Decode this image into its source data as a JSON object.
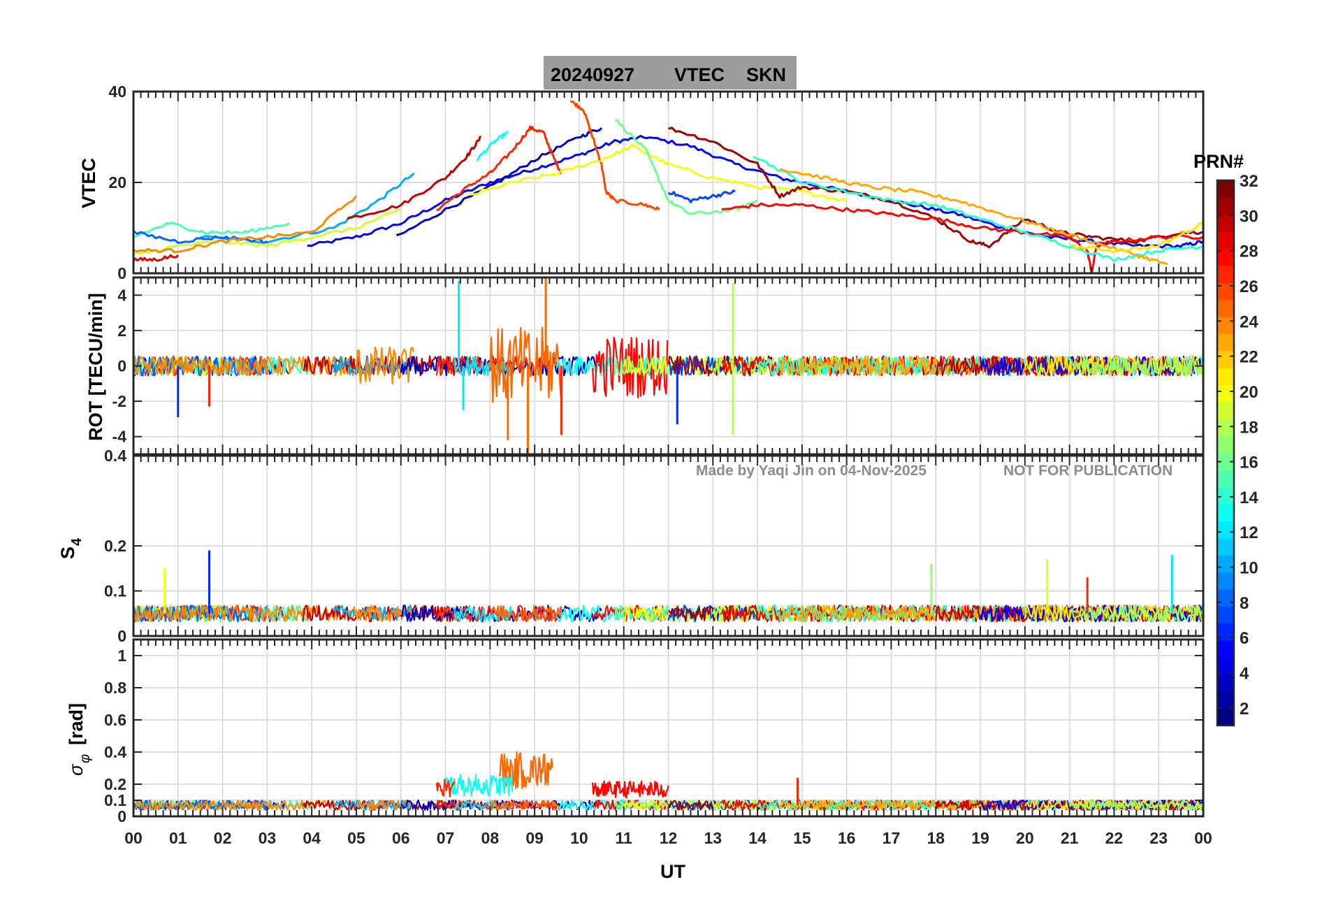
{
  "figure": {
    "title_date": "20240927",
    "title_product": "VTEC",
    "title_station": "SKN",
    "watermark_author": "Made by Yaqi Jin on 04-Nov-2025",
    "watermark_notice": "NOT FOR PUBLICATION",
    "title_bg_color": "#9e9e9e"
  },
  "chart_data": [
    {
      "type": "line",
      "id": "vtec",
      "ylabel": "VTEC",
      "ylim": [
        0,
        40
      ],
      "yticks": [
        0,
        20,
        40
      ],
      "ytick_labels": [
        "0",
        "20",
        "40"
      ],
      "xlim": [
        0,
        24
      ],
      "series_note": "one trace per GPS PRN, colored by PRN",
      "series": [
        {
          "prn": 5,
          "x": [
            3.9,
            5.0,
            6.0,
            7.0,
            8.0,
            9.0,
            10.0,
            10.8,
            11.5,
            12.5,
            13.5,
            14.5,
            15.5,
            16.5,
            17.5,
            18.5,
            19.5,
            20.5,
            21.5,
            22.5,
            23.5,
            24.0
          ],
          "y": [
            6,
            8,
            11,
            16,
            20,
            23,
            26,
            29,
            30,
            28,
            24,
            21,
            19,
            17,
            15,
            13,
            10,
            8,
            7,
            6,
            6,
            7
          ]
        },
        {
          "prn": 10,
          "x": [
            1.5,
            3.0,
            4.5,
            5.5,
            6.3
          ],
          "y": [
            8,
            7,
            10,
            16,
            22
          ]
        },
        {
          "prn": 3,
          "x": [
            5.9,
            7.0,
            8.0,
            9.0,
            10.0,
            10.5
          ],
          "y": [
            8,
            14,
            19,
            25,
            30,
            32
          ]
        },
        {
          "prn": 30,
          "x": [
            4.8,
            6.0,
            7.0,
            7.5,
            7.8
          ],
          "y": [
            12,
            15,
            21,
            26,
            30
          ]
        },
        {
          "prn": 27,
          "x": [
            6.8,
            7.5,
            8.0,
            8.5,
            8.9,
            9.2,
            9.4,
            9.6
          ],
          "y": [
            14,
            19,
            22,
            27,
            32,
            31,
            26,
            22
          ]
        },
        {
          "prn": 26,
          "x": [
            9.8,
            10.1,
            10.3,
            10.5,
            10.6,
            10.8,
            11.5,
            11.8
          ],
          "y": [
            38,
            36,
            30,
            24,
            18,
            16,
            15,
            14
          ]
        },
        {
          "prn": 13,
          "x": [
            7.7,
            8.1,
            8.4
          ],
          "y": [
            25,
            29,
            31
          ]
        },
        {
          "prn": 20,
          "x": [
            7.5,
            8.5,
            9.5,
            10.5,
            11.2,
            12.0,
            13.0,
            14.0,
            15.0,
            16.0
          ],
          "y": [
            17,
            20,
            22,
            25,
            28,
            24,
            21,
            19,
            18,
            16
          ]
        },
        {
          "prn": 31,
          "x": [
            12.0,
            13.0,
            14.0,
            14.5,
            15.0,
            16.0,
            17.0,
            18.0,
            18.8,
            19.2,
            20.0,
            20.8,
            21.5,
            22.5,
            23.5,
            24.0
          ],
          "y": [
            32,
            29,
            24,
            17,
            19,
            18,
            16,
            12,
            7,
            6,
            12,
            9,
            8,
            7,
            9,
            9
          ]
        },
        {
          "prn": 16,
          "x": [
            10.8,
            11.5,
            12.0,
            12.5,
            13.5,
            14.0
          ],
          "y": [
            34,
            27,
            16,
            13,
            14,
            16
          ]
        },
        {
          "prn": 7,
          "x": [
            12.0,
            12.5,
            13.0,
            13.5
          ],
          "y": [
            18,
            16,
            17,
            18
          ]
        },
        {
          "prn": 28,
          "x": [
            13.2,
            14.0,
            15.0,
            16.0,
            17.0,
            18.0,
            19.0,
            20.0,
            21.0,
            21.4,
            21.5,
            21.6,
            22.0,
            23.0,
            24.0
          ],
          "y": [
            14,
            15,
            15,
            14,
            13,
            12,
            10,
            9,
            8,
            5,
            0,
            6,
            7,
            8,
            8
          ]
        },
        {
          "prn": 14,
          "x": [
            13.9,
            15.0,
            16.0,
            17.0,
            18.0,
            19.0,
            20.0,
            21.0,
            22.0,
            23.0,
            24.0
          ],
          "y": [
            26,
            20,
            18,
            16,
            15,
            12,
            9,
            6,
            3,
            5,
            6
          ]
        },
        {
          "prn": 23,
          "x": [
            14.5,
            15.5,
            16.5,
            17.5,
            18.5,
            19.5,
            20.5,
            21.5,
            22.5,
            23.2
          ],
          "y": [
            23,
            21,
            19,
            18,
            16,
            13,
            10,
            7,
            4,
            2
          ]
        },
        {
          "prn": 19,
          "x": [
            0.0,
            1.0,
            2.0,
            3.0,
            4.0,
            5.0,
            6.0
          ],
          "y": [
            4,
            6,
            7,
            6,
            8,
            10,
            14
          ]
        },
        {
          "prn": 15,
          "x": [
            0.0,
            0.8,
            1.6,
            2.5,
            3.5
          ],
          "y": [
            8,
            11,
            9,
            9,
            11
          ]
        },
        {
          "prn": 29,
          "x": [
            0.0,
            0.5,
            1.0
          ],
          "y": [
            3,
            3,
            4
          ]
        },
        {
          "prn": 8,
          "x": [
            0.0,
            1.0,
            2.0,
            3.0
          ],
          "y": [
            9,
            7,
            8,
            7
          ]
        },
        {
          "prn": 24,
          "x": [
            0.0,
            1.0,
            2.0,
            3.0,
            4.0,
            5.0
          ],
          "y": [
            5,
            5,
            7,
            8,
            9,
            17
          ]
        },
        {
          "prn": 21,
          "x": [
            21.0,
            22.0,
            23.0,
            24.0
          ],
          "y": [
            6,
            5,
            6,
            11
          ]
        }
      ]
    },
    {
      "type": "line",
      "id": "rot",
      "ylabel": "ROT [TECU/min]",
      "ylim": [
        -5,
        5
      ],
      "yticks": [
        -4,
        -2,
        0,
        2,
        4
      ],
      "ytick_labels": [
        "-4",
        "-2",
        "0",
        "2",
        "4"
      ],
      "xlim": [
        0,
        24
      ],
      "spikes": [
        {
          "prn": 12,
          "x": 7.3,
          "y": 4.8
        },
        {
          "prn": 12,
          "x": 7.4,
          "y": -2.5
        },
        {
          "prn": 25,
          "x": 8.4,
          "y": -4.2
        },
        {
          "prn": 25,
          "x": 8.85,
          "y": -5.0
        },
        {
          "prn": 25,
          "x": 9.25,
          "y": 5.0
        },
        {
          "prn": 27,
          "x": 9.6,
          "y": -3.9
        },
        {
          "prn": 18,
          "x": 13.45,
          "y": 4.7
        },
        {
          "prn": 18,
          "x": 13.45,
          "y": -3.9
        },
        {
          "prn": 6,
          "x": 12.2,
          "y": -3.3
        },
        {
          "prn": 6,
          "x": 1.0,
          "y": -2.9
        },
        {
          "prn": 27,
          "x": 1.7,
          "y": -2.3
        }
      ],
      "typical_range": [
        -1,
        1
      ]
    },
    {
      "type": "line",
      "id": "s4",
      "ylabel": "S4",
      "ylim": [
        0,
        0.4
      ],
      "yticks": [
        0,
        0.1,
        0.2,
        0.4
      ],
      "ytick_labels": [
        "0",
        "0.1",
        "0.2",
        "0.4"
      ],
      "xlim": [
        0,
        24
      ],
      "spikes": [
        {
          "prn": 6,
          "x": 1.7,
          "y": 0.19
        },
        {
          "prn": 20,
          "x": 0.7,
          "y": 0.15
        },
        {
          "prn": 12,
          "x": 23.3,
          "y": 0.18
        },
        {
          "prn": 17,
          "x": 17.9,
          "y": 0.16
        },
        {
          "prn": 19,
          "x": 20.5,
          "y": 0.17
        },
        {
          "prn": 27,
          "x": 21.4,
          "y": 0.13
        }
      ],
      "baseline": 0.05
    },
    {
      "type": "line",
      "id": "sigphi",
      "ylabel": "σφ [rad]",
      "ylim": [
        0,
        1.1
      ],
      "yticks": [
        0,
        0.1,
        0.2,
        0.4,
        0.6,
        0.8,
        1.0
      ],
      "ytick_labels": [
        "0",
        "0.1",
        "0.2",
        "0.4",
        "0.6",
        "0.8",
        "1"
      ],
      "xlim": [
        0,
        24
      ],
      "bursts": [
        {
          "prn": 25,
          "x": [
            8.2,
            9.4
          ],
          "y_max": 0.4
        },
        {
          "prn": 13,
          "x": [
            7.0,
            8.5
          ],
          "y_max": 0.26
        },
        {
          "prn": 27,
          "x": [
            6.8,
            7.2
          ],
          "y_max": 0.24
        },
        {
          "prn": 27,
          "x": [
            14.9,
            14.95
          ],
          "y_max": 0.24
        },
        {
          "prn": 28,
          "x": [
            10.3,
            12.0
          ],
          "y_max": 0.22
        }
      ],
      "baseline": 0.07
    }
  ],
  "x_axis": {
    "label": "UT",
    "tick_labels": [
      "00",
      "01",
      "02",
      "03",
      "04",
      "05",
      "06",
      "07",
      "08",
      "09",
      "10",
      "11",
      "12",
      "13",
      "14",
      "15",
      "16",
      "17",
      "18",
      "19",
      "20",
      "21",
      "22",
      "23",
      "00"
    ]
  },
  "colorbar": {
    "label": "PRN#",
    "range": [
      1,
      32
    ],
    "tick_labels": [
      "2",
      "4",
      "6",
      "8",
      "10",
      "12",
      "14",
      "16",
      "18",
      "20",
      "22",
      "24",
      "26",
      "28",
      "30",
      "32"
    ]
  },
  "labels": {
    "vtec": "VTEC",
    "rot": "ROT [TECU/min]",
    "s4_main": "S",
    "s4_sub": "4",
    "sig_main": "σ",
    "sig_sub": "φ",
    "sig_unit": "[rad]"
  }
}
